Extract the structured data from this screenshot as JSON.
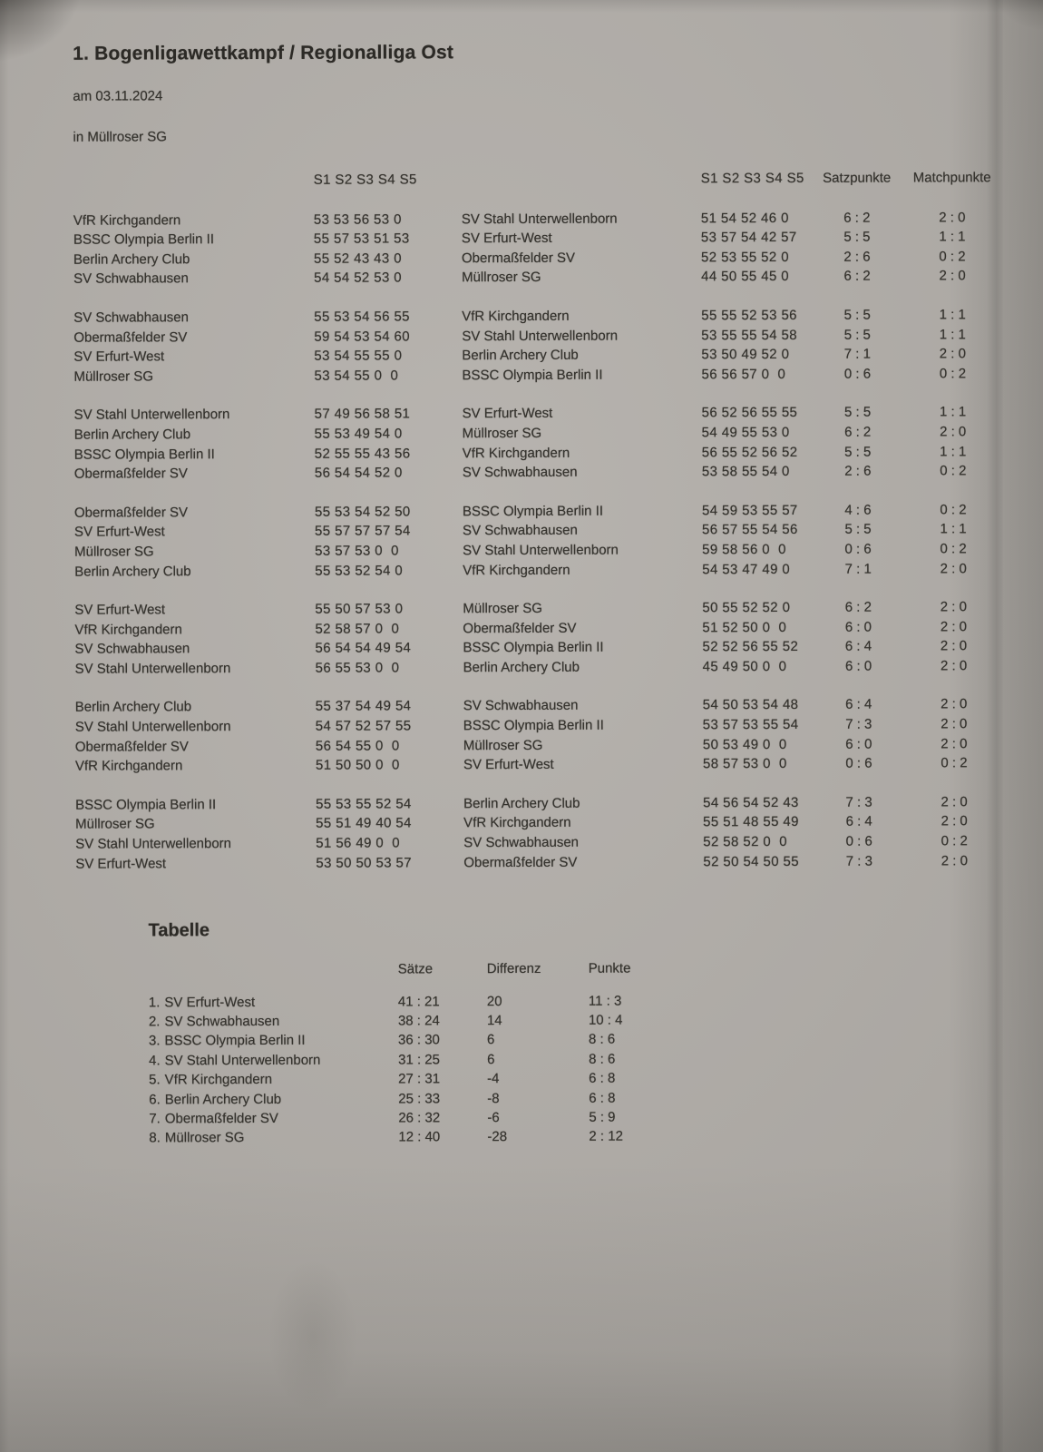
{
  "header": {
    "title": "1. Bogenligawettkampf / Regionalliga Ost",
    "date": "am 03.11.2024",
    "venue": "in Müllroser SG"
  },
  "results": {
    "sets_header": "S1 S2 S3 S4 S5",
    "satzpunkte_header": "Satzpunkte",
    "matchpunkte_header": "Matchpunkte",
    "blocks": [
      [
        {
          "home": "VfR Kirchgandern",
          "home_sets": "53 53 56 53 0",
          "away": "SV Stahl Unterwellenborn",
          "away_sets": "51 54 52 46 0",
          "satzpunkte": "6 : 2",
          "matchpunkte": "2 : 0"
        },
        {
          "home": "BSSC Olympia Berlin II",
          "home_sets": "55 57 53 51 53",
          "away": "SV Erfurt-West",
          "away_sets": "53 57 54 42 57",
          "satzpunkte": "5 : 5",
          "matchpunkte": "1 : 1"
        },
        {
          "home": "Berlin Archery Club",
          "home_sets": "55 52 43 43 0",
          "away": "Obermaßfelder SV",
          "away_sets": "52 53 55 52 0",
          "satzpunkte": "2 : 6",
          "matchpunkte": "0 : 2"
        },
        {
          "home": "SV Schwabhausen",
          "home_sets": "54 54 52 53 0",
          "away": "Müllroser SG",
          "away_sets": "44 50 55 45 0",
          "satzpunkte": "6 : 2",
          "matchpunkte": "2 : 0"
        }
      ],
      [
        {
          "home": "SV Schwabhausen",
          "home_sets": "55 53 54 56 55",
          "away": "VfR Kirchgandern",
          "away_sets": "55 55 52 53 56",
          "satzpunkte": "5 : 5",
          "matchpunkte": "1 : 1"
        },
        {
          "home": "Obermaßfelder SV",
          "home_sets": "59 54 53 54 60",
          "away": "SV Stahl Unterwellenborn",
          "away_sets": "53 55 55 54 58",
          "satzpunkte": "5 : 5",
          "matchpunkte": "1 : 1"
        },
        {
          "home": "SV Erfurt-West",
          "home_sets": "53 54 55 55 0",
          "away": "Berlin Archery Club",
          "away_sets": "53 50 49 52 0",
          "satzpunkte": "7 : 1",
          "matchpunkte": "2 : 0"
        },
        {
          "home": "Müllroser SG",
          "home_sets": "53 54 55 0  0",
          "away": "BSSC Olympia Berlin II",
          "away_sets": "56 56 57 0  0",
          "satzpunkte": "0 : 6",
          "matchpunkte": "0 : 2"
        }
      ],
      [
        {
          "home": "SV Stahl Unterwellenborn",
          "home_sets": "57 49 56 58 51",
          "away": "SV Erfurt-West",
          "away_sets": "56 52 56 55 55",
          "satzpunkte": "5 : 5",
          "matchpunkte": "1 : 1"
        },
        {
          "home": "Berlin Archery Club",
          "home_sets": "55 53 49 54 0",
          "away": "Müllroser SG",
          "away_sets": "54 49 55 53 0",
          "satzpunkte": "6 : 2",
          "matchpunkte": "2 : 0"
        },
        {
          "home": "BSSC Olympia Berlin II",
          "home_sets": "52 55 55 43 56",
          "away": "VfR Kirchgandern",
          "away_sets": "56 55 52 56 52",
          "satzpunkte": "5 : 5",
          "matchpunkte": "1 : 1"
        },
        {
          "home": "Obermaßfelder SV",
          "home_sets": "56 54 54 52 0",
          "away": "SV Schwabhausen",
          "away_sets": "53 58 55 54 0",
          "satzpunkte": "2 : 6",
          "matchpunkte": "0 : 2"
        }
      ],
      [
        {
          "home": "Obermaßfelder SV",
          "home_sets": "55 53 54 52 50",
          "away": "BSSC Olympia Berlin II",
          "away_sets": "54 59 53 55 57",
          "satzpunkte": "4 : 6",
          "matchpunkte": "0 : 2"
        },
        {
          "home": "SV Erfurt-West",
          "home_sets": "55 57 57 57 54",
          "away": "SV Schwabhausen",
          "away_sets": "56 57 55 54 56",
          "satzpunkte": "5 : 5",
          "matchpunkte": "1 : 1"
        },
        {
          "home": "Müllroser SG",
          "home_sets": "53 57 53 0  0",
          "away": "SV Stahl Unterwellenborn",
          "away_sets": "59 58 56 0  0",
          "satzpunkte": "0 : 6",
          "matchpunkte": "0 : 2"
        },
        {
          "home": "Berlin Archery Club",
          "home_sets": "55 53 52 54 0",
          "away": "VfR Kirchgandern",
          "away_sets": "54 53 47 49 0",
          "satzpunkte": "7 : 1",
          "matchpunkte": "2 : 0"
        }
      ],
      [
        {
          "home": "SV Erfurt-West",
          "home_sets": "55 50 57 53 0",
          "away": "Müllroser SG",
          "away_sets": "50 55 52 52 0",
          "satzpunkte": "6 : 2",
          "matchpunkte": "2 : 0"
        },
        {
          "home": "VfR Kirchgandern",
          "home_sets": "52 58 57 0  0",
          "away": "Obermaßfelder SV",
          "away_sets": "51 52 50 0  0",
          "satzpunkte": "6 : 0",
          "matchpunkte": "2 : 0"
        },
        {
          "home": "SV Schwabhausen",
          "home_sets": "56 54 54 49 54",
          "away": "BSSC Olympia Berlin II",
          "away_sets": "52 52 56 55 52",
          "satzpunkte": "6 : 4",
          "matchpunkte": "2 : 0"
        },
        {
          "home": "SV Stahl Unterwellenborn",
          "home_sets": "56 55 53 0  0",
          "away": "Berlin Archery Club",
          "away_sets": "45 49 50 0  0",
          "satzpunkte": "6 : 0",
          "matchpunkte": "2 : 0"
        }
      ],
      [
        {
          "home": "Berlin Archery Club",
          "home_sets": "55 37 54 49 54",
          "away": "SV Schwabhausen",
          "away_sets": "54 50 53 54 48",
          "satzpunkte": "6 : 4",
          "matchpunkte": "2 : 0"
        },
        {
          "home": "SV Stahl Unterwellenborn",
          "home_sets": "54 57 52 57 55",
          "away": "BSSC Olympia Berlin II",
          "away_sets": "53 57 53 55 54",
          "satzpunkte": "7 : 3",
          "matchpunkte": "2 : 0"
        },
        {
          "home": "Obermaßfelder SV",
          "home_sets": "56 54 55 0  0",
          "away": "Müllroser SG",
          "away_sets": "50 53 49 0  0",
          "satzpunkte": "6 : 0",
          "matchpunkte": "2 : 0"
        },
        {
          "home": "VfR Kirchgandern",
          "home_sets": "51 50 50 0  0",
          "away": "SV Erfurt-West",
          "away_sets": "58 57 53 0  0",
          "satzpunkte": "0 : 6",
          "matchpunkte": "0 : 2"
        }
      ],
      [
        {
          "home": "BSSC Olympia Berlin II",
          "home_sets": "55 53 55 52 54",
          "away": "Berlin Archery Club",
          "away_sets": "54 56 54 52 43",
          "satzpunkte": "7 : 3",
          "matchpunkte": "2 : 0"
        },
        {
          "home": "Müllroser SG",
          "home_sets": "55 51 49 40 54",
          "away": "VfR Kirchgandern",
          "away_sets": "55 51 48 55 49",
          "satzpunkte": "6 : 4",
          "matchpunkte": "2 : 0"
        },
        {
          "home": "SV Stahl Unterwellenborn",
          "home_sets": "51 56 49 0  0",
          "away": "SV Schwabhausen",
          "away_sets": "52 58 52 0  0",
          "satzpunkte": "0 : 6",
          "matchpunkte": "0 : 2"
        },
        {
          "home": "SV Erfurt-West",
          "home_sets": "53 50 50 53 57",
          "away": "Obermaßfelder SV",
          "away_sets": "52 50 54 50 55",
          "satzpunkte": "7 : 3",
          "matchpunkte": "2 : 0"
        }
      ]
    ]
  },
  "tabelle": {
    "title": "Tabelle",
    "columns": {
      "saetze": "Sätze",
      "differenz": "Differenz",
      "punkte": "Punkte"
    },
    "rows": [
      {
        "rank": "1.",
        "team": "SV Erfurt-West",
        "saetze": "41 : 21",
        "differenz": "20",
        "punkte": "11 : 3"
      },
      {
        "rank": "2.",
        "team": "SV Schwabhausen",
        "saetze": "38 : 24",
        "differenz": "14",
        "punkte": "10 : 4"
      },
      {
        "rank": "3.",
        "team": "BSSC Olympia Berlin II",
        "saetze": "36 : 30",
        "differenz": "6",
        "punkte": "8 : 6"
      },
      {
        "rank": "4.",
        "team": "SV Stahl Unterwellenborn",
        "saetze": "31 : 25",
        "differenz": "6",
        "punkte": "8 : 6"
      },
      {
        "rank": "5.",
        "team": "VfR Kirchgandern",
        "saetze": "27 : 31",
        "differenz": "-4",
        "punkte": "6 : 8"
      },
      {
        "rank": "6.",
        "team": "Berlin Archery Club",
        "saetze": "25 : 33",
        "differenz": "-8",
        "punkte": "6 : 8"
      },
      {
        "rank": "7.",
        "team": "Obermaßfelder SV",
        "saetze": "26 : 32",
        "differenz": "-6",
        "punkte": "5 : 9"
      },
      {
        "rank": "8.",
        "team": "Müllroser SG",
        "saetze": "12 : 40",
        "differenz": "-28",
        "punkte": "2 : 12"
      }
    ]
  }
}
